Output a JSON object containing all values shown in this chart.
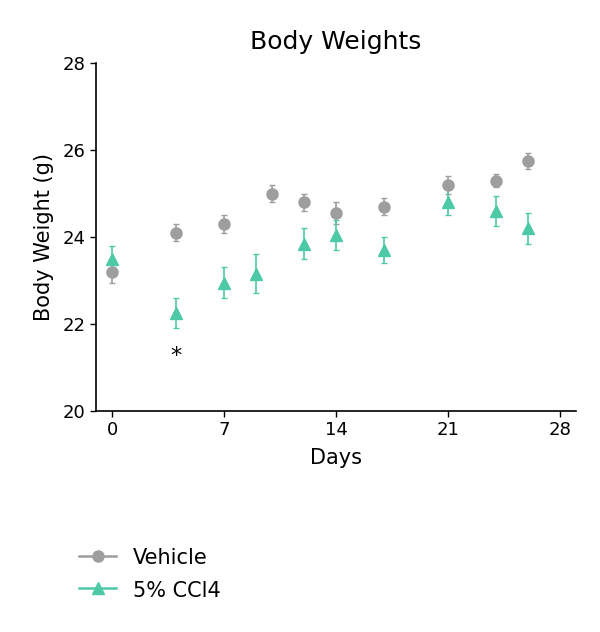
{
  "title": "Body Weights",
  "xlabel": "Days",
  "ylabel": "Body Weight (g)",
  "xlim": [
    -1,
    29
  ],
  "ylim": [
    20,
    28
  ],
  "yticks": [
    20,
    22,
    24,
    26,
    28
  ],
  "xticks": [
    0,
    7,
    14,
    21,
    28
  ],
  "vehicle": {
    "x": [
      0,
      4,
      7,
      10,
      12,
      14,
      17,
      21,
      24,
      26
    ],
    "y": [
      23.2,
      24.1,
      24.3,
      25.0,
      24.8,
      24.55,
      24.7,
      25.2,
      25.3,
      25.75
    ],
    "yerr": [
      0.25,
      0.2,
      0.2,
      0.2,
      0.2,
      0.25,
      0.2,
      0.2,
      0.15,
      0.18
    ],
    "color": "#9e9e9e",
    "label": "Vehicle",
    "marker": "o",
    "markersize": 8
  },
  "ccl4": {
    "x": [
      0,
      4,
      7,
      9,
      12,
      14,
      17,
      21,
      24,
      26
    ],
    "y": [
      23.5,
      22.25,
      22.95,
      23.15,
      23.85,
      24.05,
      23.7,
      24.8,
      24.6,
      24.2
    ],
    "yerr": [
      0.3,
      0.35,
      0.35,
      0.45,
      0.35,
      0.35,
      0.3,
      0.3,
      0.35,
      0.35
    ],
    "color": "#4ec9a8",
    "label": "5% CCl4",
    "marker": "^",
    "markersize": 8
  },
  "asterisk_x": 4,
  "asterisk_y": 21.5,
  "background_color": "#ffffff",
  "title_fontsize": 18,
  "axis_label_fontsize": 15,
  "tick_fontsize": 13,
  "legend_fontsize": 15
}
